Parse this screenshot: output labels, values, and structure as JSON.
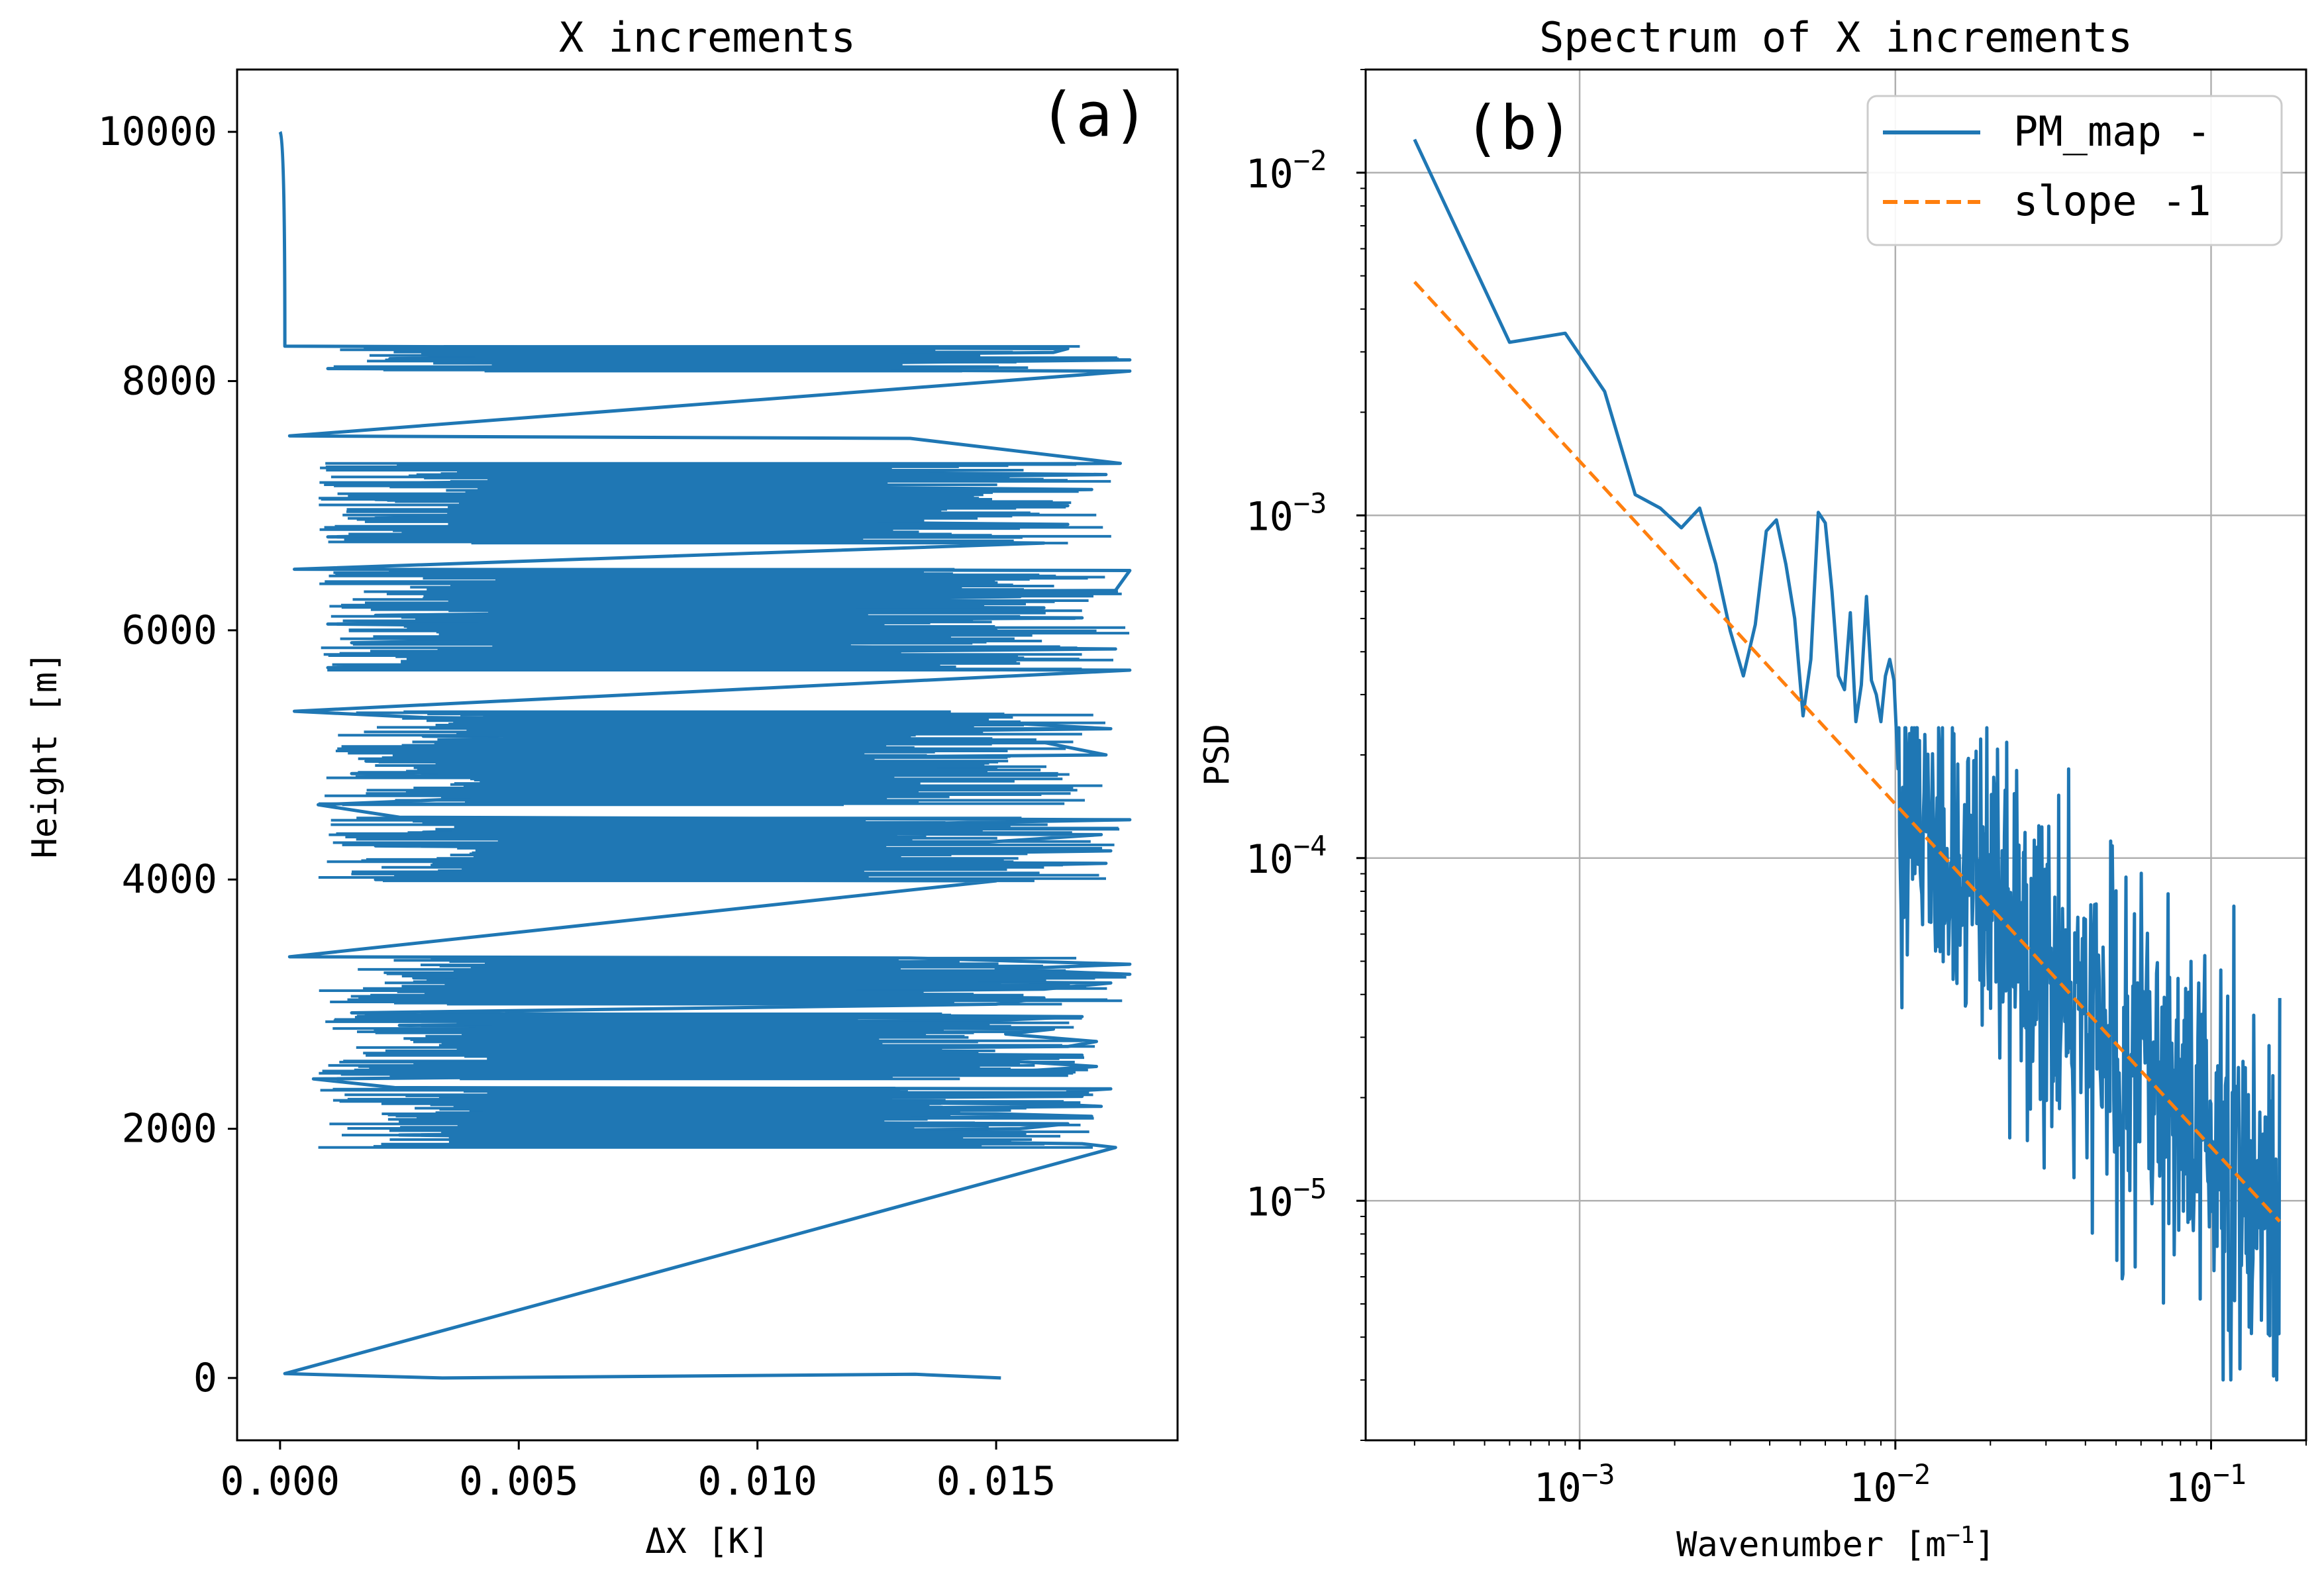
{
  "chart_data": [
    {
      "panel": "(a)",
      "type": "line",
      "title": "X increments",
      "xlabel": "ΔX  [K]",
      "ylabel": "Height  [m]",
      "xlim": [
        -0.0009,
        0.0188
      ],
      "ylim": [
        -500,
        10500
      ],
      "xticks": [
        0.0,
        0.005,
        0.01,
        0.015
      ],
      "xtick_labels": [
        "0.000",
        "0.005",
        "0.010",
        "0.015"
      ],
      "yticks": [
        0,
        2000,
        4000,
        6000,
        8000,
        10000
      ],
      "ytick_labels": [
        "0",
        "2000",
        "4000",
        "6000",
        "8000",
        "10000"
      ],
      "grid": false,
      "color": "#1f77b4",
      "spikes": [
        [
          0.0151,
          0
        ],
        [
          0.0133,
          30
        ],
        [
          0.0034,
          0
        ],
        [
          0.0001,
          35
        ],
        [
          0.0175,
          1850
        ],
        [
          0.0168,
          1880
        ],
        [
          0.0025,
          1950
        ],
        [
          0.0155,
          2000
        ],
        [
          0.0165,
          2040
        ],
        [
          0.0034,
          2060
        ],
        [
          0.017,
          2100
        ],
        [
          0.015,
          2120
        ],
        [
          0.004,
          2140
        ],
        [
          0.0172,
          2180
        ],
        [
          0.016,
          2200
        ],
        [
          0.003,
          2230
        ],
        [
          0.0168,
          2260
        ],
        [
          0.0165,
          2300
        ],
        [
          0.0174,
          2320
        ],
        [
          0.0024,
          2330
        ],
        [
          0.0007,
          2400
        ],
        [
          0.015,
          2450
        ],
        [
          0.0171,
          2500
        ],
        [
          0.015,
          2550
        ],
        [
          0.0168,
          2590
        ],
        [
          0.003,
          2620
        ],
        [
          0.0165,
          2660
        ],
        [
          0.0171,
          2700
        ],
        [
          0.0152,
          2760
        ],
        [
          0.0162,
          2800
        ],
        [
          0.0025,
          2830
        ],
        [
          0.015,
          2870
        ],
        [
          0.0168,
          2900
        ],
        [
          0.0015,
          2930
        ],
        [
          0.015,
          3000
        ],
        [
          0.016,
          3050
        ],
        [
          0.004,
          3080
        ],
        [
          0.016,
          3120
        ],
        [
          0.0174,
          3170
        ],
        [
          0.0028,
          3210
        ],
        [
          0.0178,
          3240
        ],
        [
          0.015,
          3280
        ],
        [
          0.0178,
          3320
        ],
        [
          0.0132,
          3370
        ],
        [
          0.0002,
          3380
        ],
        [
          0.015,
          3990
        ],
        [
          0.002,
          4000
        ],
        [
          0.0173,
          4130
        ],
        [
          0.0025,
          4150
        ],
        [
          0.0174,
          4230
        ],
        [
          0.002,
          4270
        ],
        [
          0.0148,
          4300
        ],
        [
          0.0172,
          4360
        ],
        [
          0.003,
          4380
        ],
        [
          0.0178,
          4480
        ],
        [
          0.0025,
          4500
        ],
        [
          0.0008,
          4600
        ],
        [
          0.0135,
          4800
        ],
        [
          0.0015,
          4850
        ],
        [
          0.015,
          4900
        ],
        [
          0.0018,
          4950
        ],
        [
          0.0173,
          5000
        ],
        [
          0.016,
          5100
        ],
        [
          0.003,
          5150
        ],
        [
          0.0174,
          5210
        ],
        [
          0.0155,
          5250
        ],
        [
          0.003,
          5300
        ],
        [
          0.0003,
          5350
        ],
        [
          0.0178,
          5680
        ],
        [
          0.001,
          5700
        ],
        [
          0.0148,
          5760
        ],
        [
          0.003,
          5800
        ],
        [
          0.0175,
          5850
        ],
        [
          0.0015,
          5900
        ],
        [
          0.015,
          6000
        ],
        [
          0.001,
          6050
        ],
        [
          0.0168,
          6100
        ],
        [
          0.002,
          6120
        ],
        [
          0.016,
          6180
        ],
        [
          0.0025,
          6200
        ],
        [
          0.0155,
          6270
        ],
        [
          0.003,
          6300
        ],
        [
          0.0175,
          6320
        ],
        [
          0.0178,
          6480
        ],
        [
          0.0003,
          6490
        ],
        [
          0.016,
          6700
        ],
        [
          0.001,
          6750
        ],
        [
          0.0165,
          6850
        ],
        [
          0.002,
          6900
        ],
        [
          0.0165,
          7000
        ],
        [
          0.002,
          7050
        ],
        [
          0.017,
          7130
        ],
        [
          0.002,
          7180
        ],
        [
          0.0173,
          7250
        ],
        [
          0.0025,
          7300
        ],
        [
          0.0176,
          7340
        ],
        [
          0.0132,
          7540
        ],
        [
          0.0002,
          7560
        ],
        [
          0.0178,
          8080
        ],
        [
          0.001,
          8100
        ],
        [
          0.0178,
          8170
        ],
        [
          0.0023,
          8180
        ],
        [
          0.0162,
          8230
        ],
        [
          0.0165,
          8260
        ],
        [
          0.0001,
          8280
        ],
        [
          0.0,
          10000
        ]
      ]
    },
    {
      "panel": "(b)",
      "type": "line",
      "scale": "log-log",
      "title": "Spectrum of X increments",
      "xlabel_text": "Wavenumber  [m",
      "xlabel_exp": "−1",
      "xlabel_close": "]",
      "ylabel": "PSD",
      "xlim": [
        0.00021,
        0.2
      ],
      "ylim": [
        2e-06,
        0.02
      ],
      "xticks": [
        0.001,
        0.01,
        0.1
      ],
      "xtick_labels": [
        {
          "base": "10",
          "exp": "−3"
        },
        {
          "base": "10",
          "exp": "−2"
        },
        {
          "base": "10",
          "exp": "−1"
        }
      ],
      "yticks": [
        1e-05,
        0.0001,
        0.001,
        0.01
      ],
      "ytick_labels": [
        {
          "base": "10",
          "exp": "−5"
        },
        {
          "base": "10",
          "exp": "−4"
        },
        {
          "base": "10",
          "exp": "−3"
        },
        {
          "base": "10",
          "exp": "−2"
        }
      ],
      "grid": true,
      "legend_position": "upper right",
      "series": [
        {
          "name": "PM_map -",
          "color": "#1f77b4",
          "style": "solid",
          "x": [
            0.0003,
            0.0006,
            0.0009,
            0.0012,
            0.0015,
            0.0018,
            0.0021,
            0.0024,
            0.0027,
            0.003,
            0.0033,
            0.0036,
            0.0039,
            0.0042,
            0.0045,
            0.0048,
            0.0051,
            0.0054,
            0.0057,
            0.006,
            0.0063,
            0.0066,
            0.0069,
            0.0072,
            0.0075,
            0.0078,
            0.0081,
            0.0084,
            0.0087,
            0.009,
            0.0093,
            0.0096,
            0.0099
          ],
          "y": [
            0.0125,
            0.0032,
            0.0034,
            0.0023,
            0.00115,
            0.00105,
            0.00092,
            0.00105,
            0.00072,
            0.00046,
            0.00034,
            0.00048,
            0.0009,
            0.00097,
            0.00072,
            0.0005,
            0.00026,
            0.00038,
            0.00102,
            0.00095,
            0.0006,
            0.00034,
            0.00031,
            0.00052,
            0.00025,
            0.00032,
            0.00058,
            0.00033,
            0.0003,
            0.00025,
            0.00034,
            0.00038,
            0.00033
          ],
          "tail": {
            "k_start": 0.0102,
            "k_end": 0.165,
            "points": 500,
            "trend_slope": -1,
            "trend_anchor_k": 0.0003,
            "trend_anchor_psd": 0.0048,
            "log10_noise_amplitude": 0.55,
            "min_psd": 3e-06,
            "max_psd": 0.00024
          }
        },
        {
          "name": "slope -1",
          "color": "#ff7f0e",
          "style": "dashed",
          "x": [
            0.0003,
            0.165
          ],
          "y": [
            0.0048,
            8.7e-06
          ]
        }
      ]
    }
  ]
}
